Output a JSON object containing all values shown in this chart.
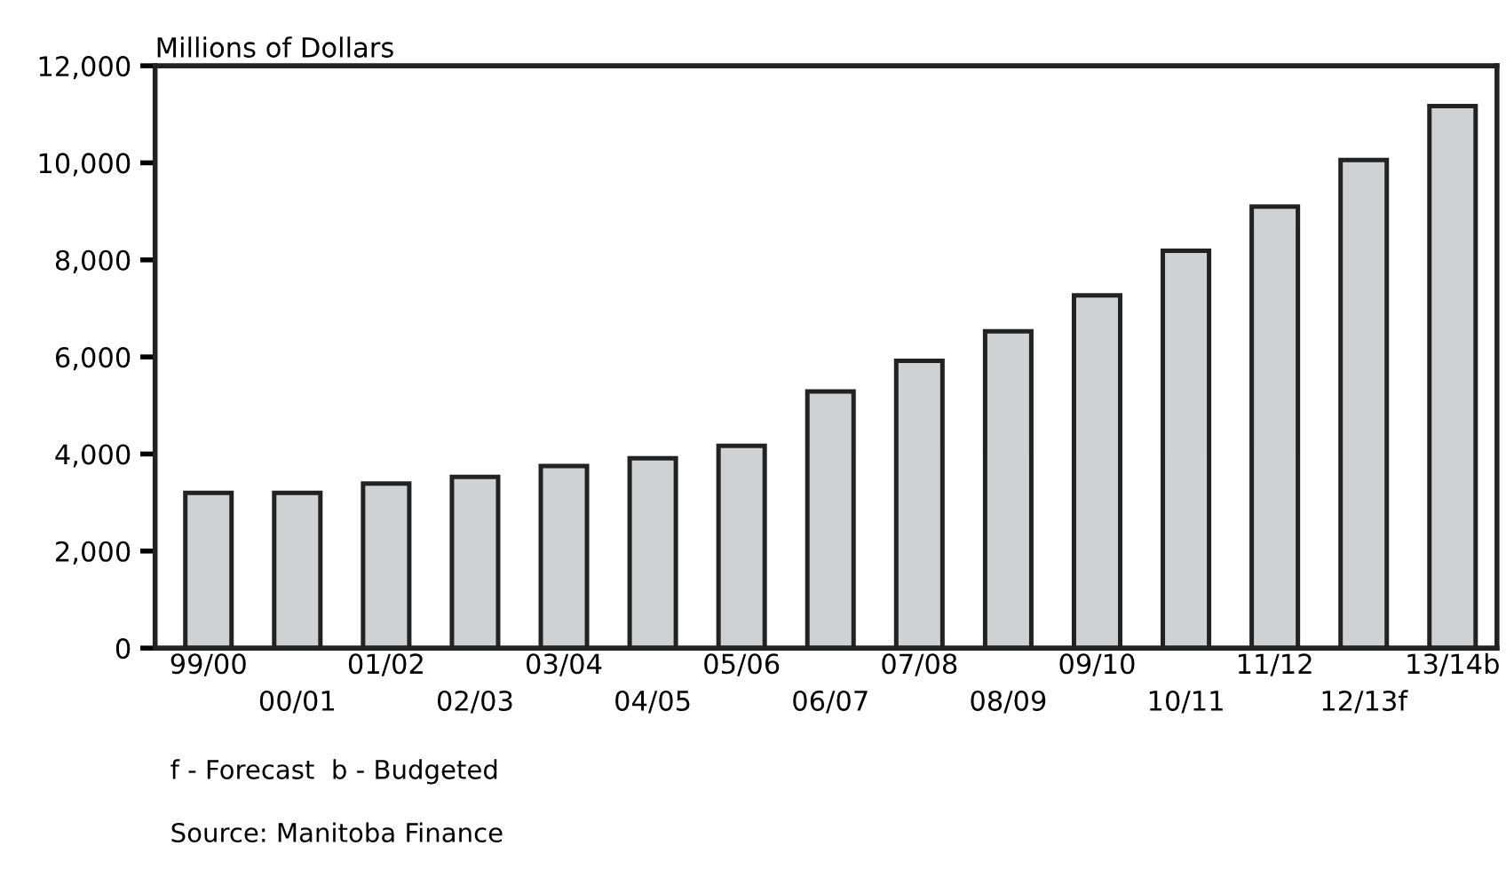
{
  "chart_data": {
    "type": "bar",
    "ylabel": "Millions of Dollars",
    "categories": [
      "99/00",
      "00/01",
      "01/02",
      "02/03",
      "03/04",
      "04/05",
      "05/06",
      "06/07",
      "07/08",
      "08/09",
      "09/10",
      "10/11",
      "11/12",
      "12/13f",
      "13/14b"
    ],
    "values": [
      3200,
      3200,
      3390,
      3530,
      3750,
      3910,
      4170,
      5290,
      5920,
      6530,
      7270,
      8190,
      9100,
      10060,
      11170
    ],
    "color": "#d0d1d3",
    "ylim": [
      0,
      12000
    ],
    "yticks": [
      0,
      {
        "value": 2000,
        "label": "2,000"
      },
      {
        "value": 4000,
        "label": "4,000"
      },
      {
        "value": 6000,
        "label": "6,000"
      },
      {
        "value": 8000,
        "label": "8,000"
      },
      {
        "value": 10000,
        "label": "10,000"
      },
      {
        "value": 12000,
        "label": "12,000"
      }
    ],
    "grid": false,
    "annotations": [
      "f - Forecast  b - Budgeted",
      "Source: Manitoba Finance"
    ]
  }
}
